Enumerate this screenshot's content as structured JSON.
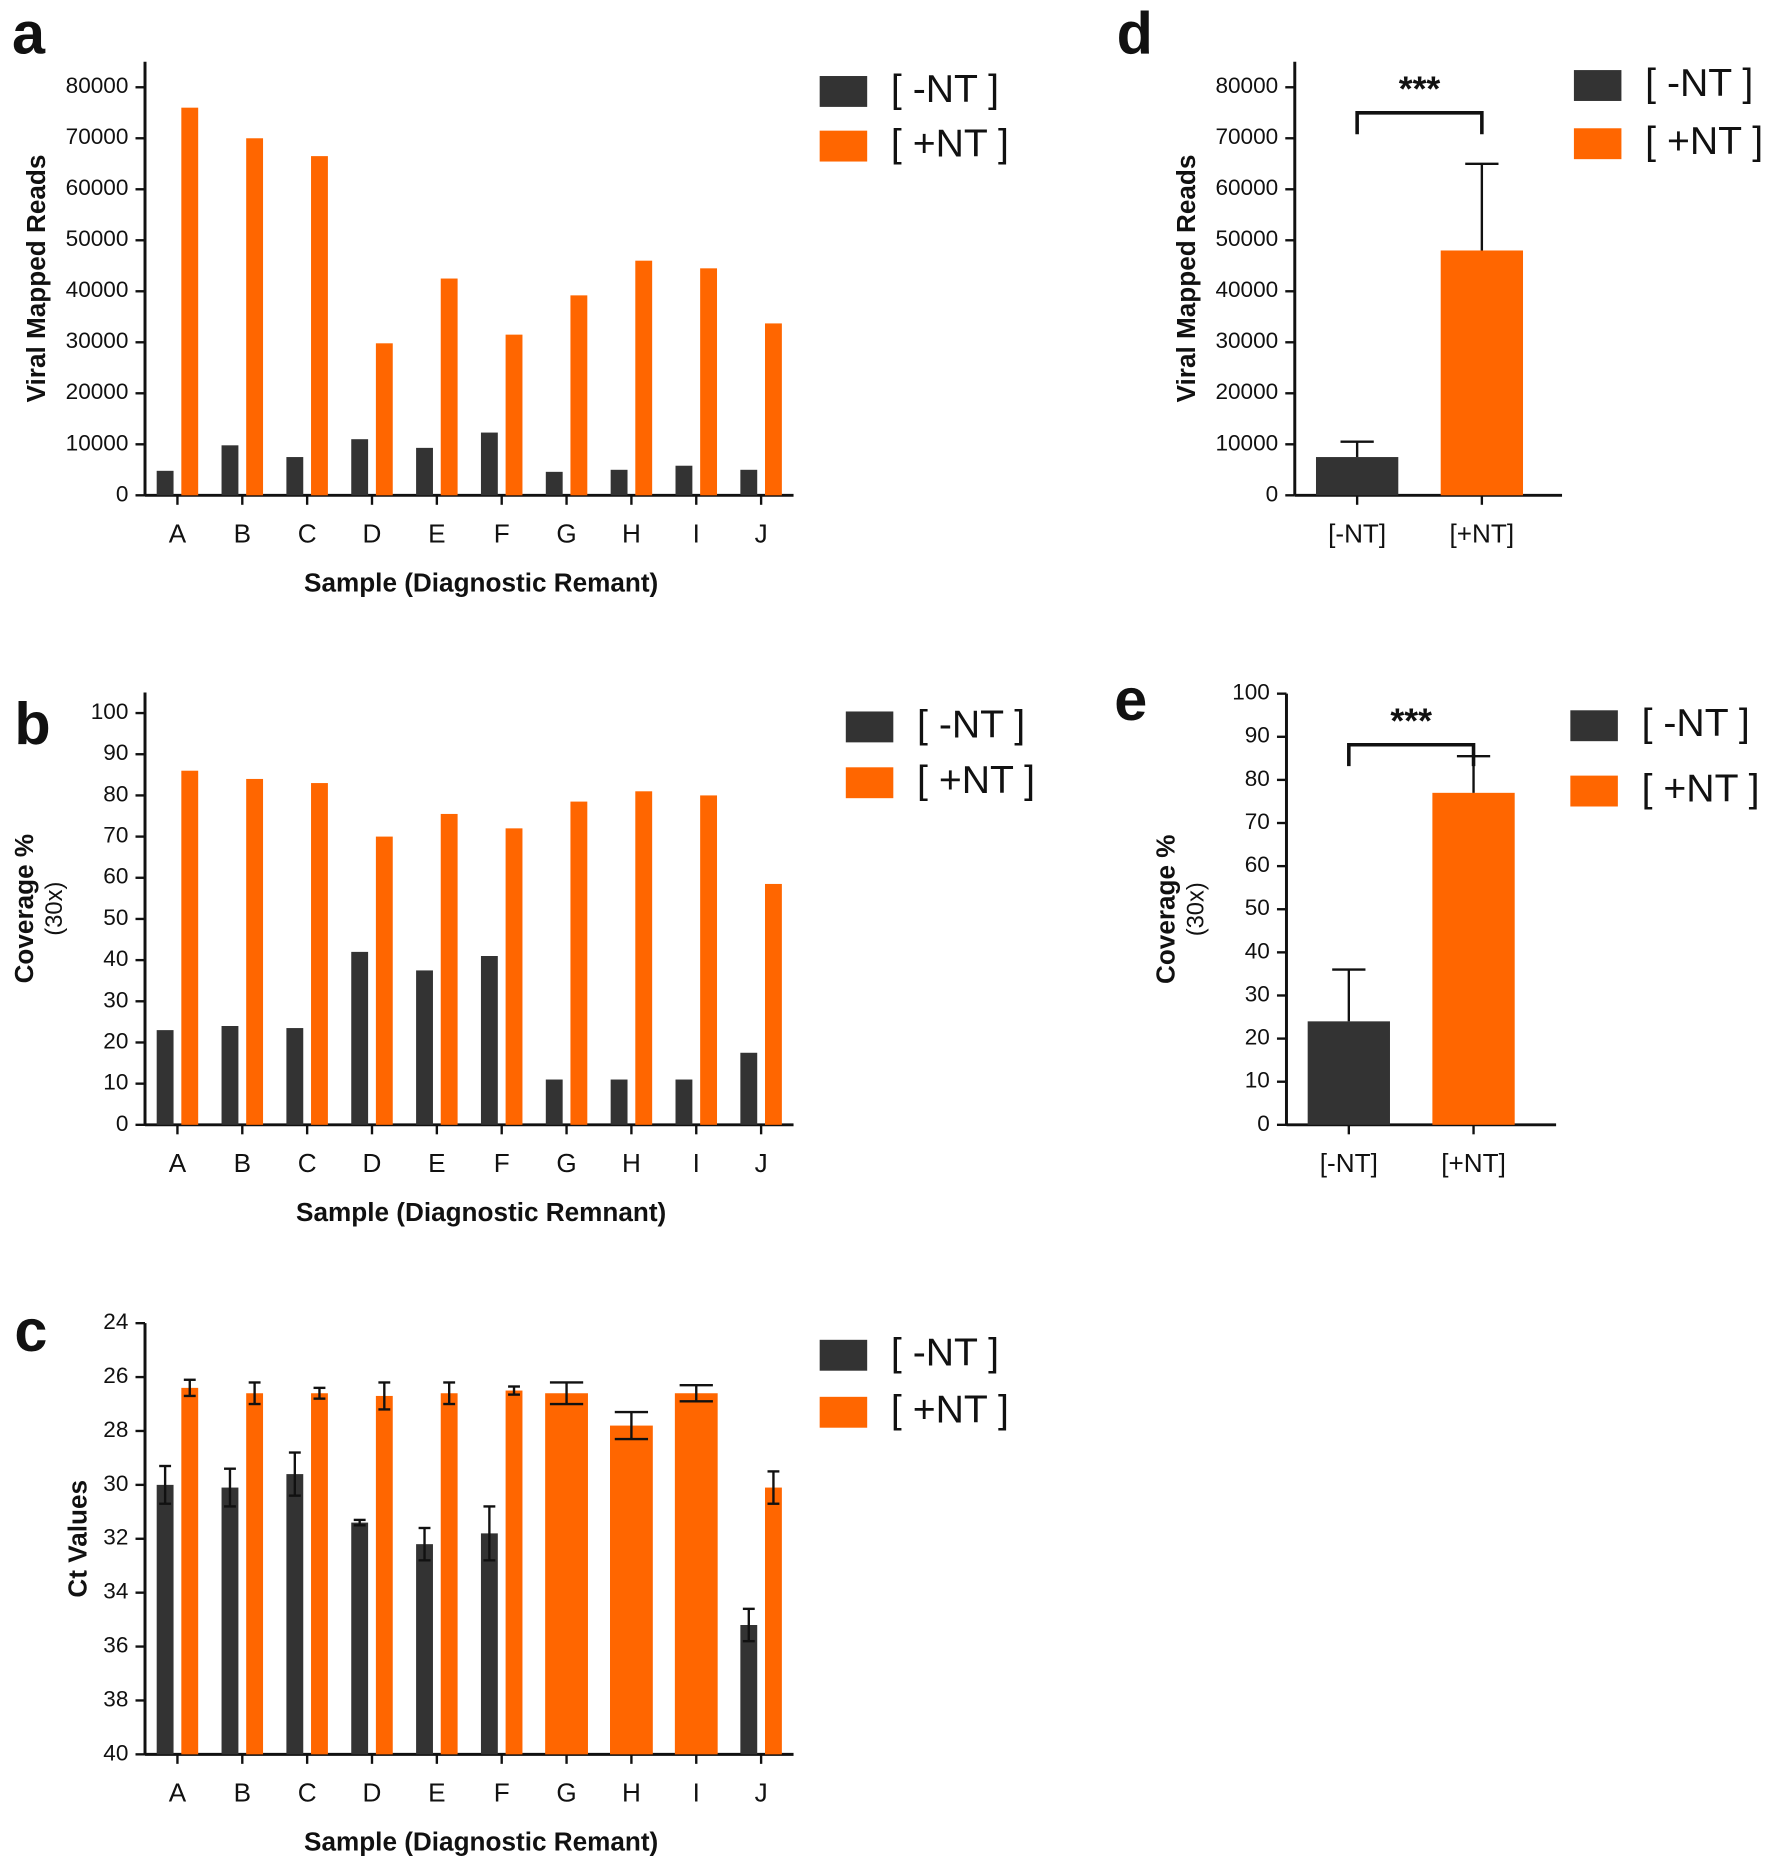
{
  "chart_data": [
    {
      "type": "bar",
      "label": "a",
      "ylabel": "Viral Mapped Reads",
      "xlabel": "Sample (Diagnostic Remant)",
      "categories": [
        "A",
        "B",
        "C",
        "D",
        "E",
        "F",
        "G",
        "H",
        "I",
        "J"
      ],
      "series": [
        {
          "name": "[ -NT ]",
          "color": "#333333",
          "values": [
            4800,
            9800,
            7500,
            11000,
            9300,
            12300,
            4600,
            5000,
            5800,
            5000
          ]
        },
        {
          "name": "[ +NT ]",
          "color": "#ff6600",
          "values": [
            76000,
            70000,
            66500,
            29800,
            42500,
            31500,
            39200,
            46000,
            44500,
            33700
          ]
        }
      ],
      "ylim": [
        0,
        85000
      ],
      "yticks": [
        0,
        10000,
        20000,
        30000,
        40000,
        50000,
        60000,
        70000,
        80000
      ]
    },
    {
      "type": "bar",
      "label": "b",
      "ylabel": "Coverage %",
      "ylabel_sub": "(30x)",
      "xlabel": "Sample (Diagnostic Remnant)",
      "categories": [
        "A",
        "B",
        "C",
        "D",
        "E",
        "F",
        "G",
        "H",
        "I",
        "J"
      ],
      "series": [
        {
          "name": "[ -NT ]",
          "color": "#333333",
          "values": [
            23,
            24,
            23.5,
            42,
            37.5,
            41,
            11,
            11,
            11,
            17.5
          ]
        },
        {
          "name": "[ +NT ]",
          "color": "#ff6600",
          "values": [
            86,
            84,
            83,
            70,
            75.5,
            72,
            78.5,
            81,
            80,
            58.5
          ]
        }
      ],
      "ylim": [
        0,
        105
      ],
      "yticks": [
        0,
        10,
        20,
        30,
        40,
        50,
        60,
        70,
        80,
        90,
        100
      ]
    },
    {
      "type": "bar",
      "label": "c",
      "ylabel": "Ct Values",
      "xlabel": "Sample (Diagnostic Remant)",
      "categories": [
        "A",
        "B",
        "C",
        "D",
        "E",
        "F",
        "G",
        "H",
        "I",
        "J"
      ],
      "series": [
        {
          "name": "[ -NT ]",
          "color": "#333333",
          "values": [
            30.0,
            30.1,
            29.6,
            31.4,
            32.2,
            31.8,
            null,
            null,
            null,
            35.2
          ],
          "errors": [
            0.7,
            0.7,
            0.8,
            0.1,
            0.6,
            1.0,
            null,
            null,
            null,
            0.6
          ]
        },
        {
          "name": "[ +NT ]",
          "color": "#ff6600",
          "values": [
            26.4,
            26.6,
            26.6,
            26.7,
            26.6,
            26.5,
            26.6,
            27.8,
            26.6,
            30.1
          ],
          "errors": [
            0.3,
            0.4,
            0.2,
            0.5,
            0.4,
            0.15,
            0.4,
            0.5,
            0.3,
            0.6
          ]
        }
      ],
      "ylim": [
        24,
        40
      ],
      "y_inverted": true,
      "error_style": "both",
      "yticks": [
        24,
        26,
        28,
        30,
        32,
        34,
        36,
        38,
        40
      ]
    },
    {
      "type": "bar",
      "label": "d",
      "ylabel": "Viral Mapped Reads",
      "categories": [
        "[-NT]",
        "[+NT]"
      ],
      "series": [
        {
          "name": "[ -NT ]",
          "color": "#333333",
          "values": [
            7500,
            null
          ],
          "errors": [
            3000,
            null
          ]
        },
        {
          "name": "[ +NT ]",
          "color": "#ff6600",
          "values": [
            null,
            48000
          ],
          "errors": [
            null,
            17000
          ]
        }
      ],
      "ylim": [
        0,
        85000
      ],
      "error_style": "up",
      "significance": "***",
      "yticks": [
        0,
        10000,
        20000,
        30000,
        40000,
        50000,
        60000,
        70000,
        80000
      ]
    },
    {
      "type": "bar",
      "label": "e",
      "ylabel": "Coverage %",
      "ylabel_sub": "(30x)",
      "categories": [
        "[-NT]",
        "[+NT]"
      ],
      "series": [
        {
          "name": "[ -NT ]",
          "color": "#333333",
          "values": [
            24,
            null
          ],
          "errors": [
            12,
            null
          ]
        },
        {
          "name": "[ +NT ]",
          "color": "#ff6600",
          "values": [
            null,
            77
          ],
          "errors": [
            null,
            8.5
          ]
        }
      ],
      "ylim": [
        0,
        100
      ],
      "error_style": "up",
      "significance": "***",
      "yticks": [
        0,
        10,
        20,
        30,
        40,
        50,
        60,
        70,
        80,
        90,
        100
      ]
    }
  ]
}
